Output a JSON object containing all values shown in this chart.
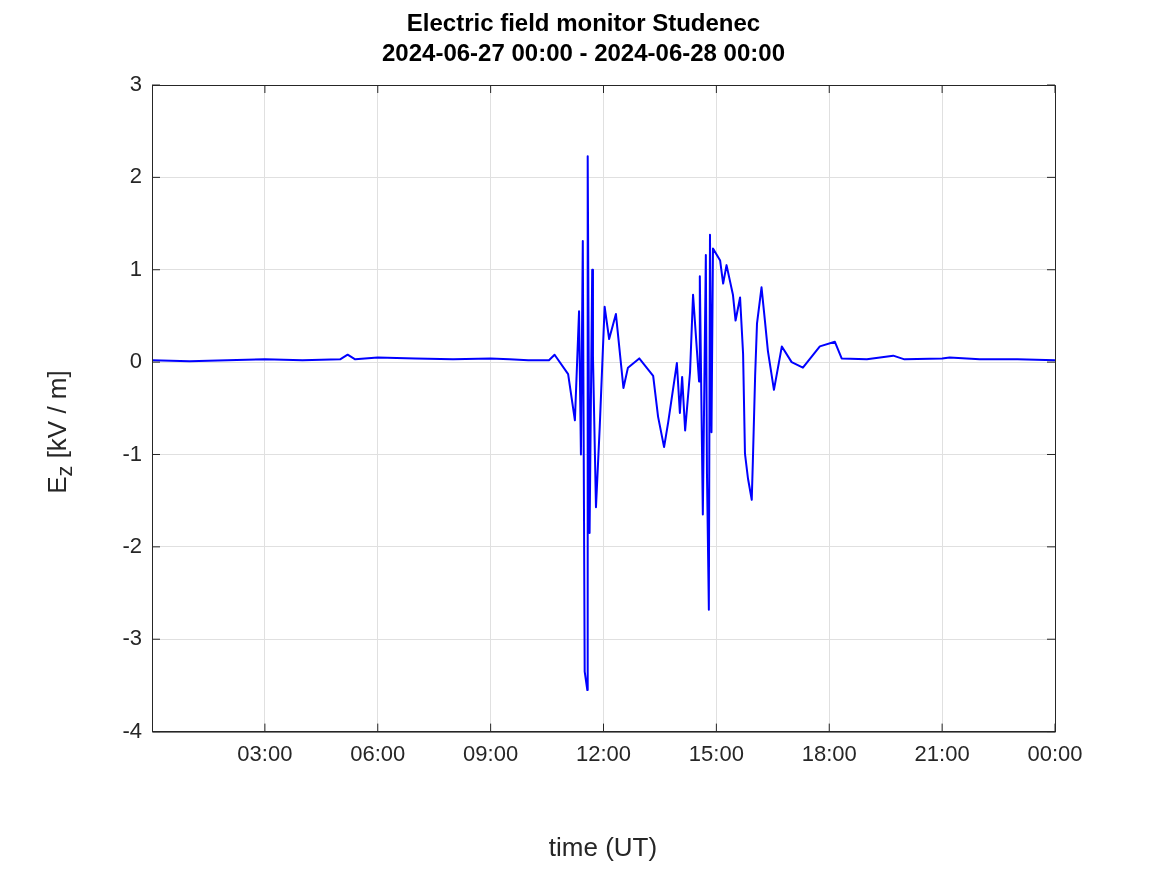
{
  "chart_data": {
    "type": "line",
    "title": "Electric field monitor Studenec",
    "subtitle": "2024-06-27 00:00 - 2024-06-28 00:00",
    "xlabel": "time (UT)",
    "ylabel": "E$_{z}$ [kV / m]",
    "xlim": [
      0,
      24
    ],
    "xticks": [
      {
        "value": 3,
        "label": "03:00"
      },
      {
        "value": 6,
        "label": "06:00"
      },
      {
        "value": 9,
        "label": "09:00"
      },
      {
        "value": 12,
        "label": "12:00"
      },
      {
        "value": 15,
        "label": "15:00"
      },
      {
        "value": 18,
        "label": "18:00"
      },
      {
        "value": 21,
        "label": "21:00"
      },
      {
        "value": 24,
        "label": "00:00"
      }
    ],
    "ylim": [
      -4,
      3
    ],
    "yticks": [
      -4,
      -3,
      -2,
      -1,
      0,
      1,
      2,
      3
    ],
    "grid": true,
    "legend": false,
    "marker": "none",
    "line_style": "solid",
    "series": [
      {
        "color": "#0000ff",
        "x": [
          0,
          1,
          2,
          3,
          4,
          5,
          5.2,
          5.4,
          6,
          7,
          8,
          9,
          9.5,
          10,
          10.55,
          10.7,
          11.06,
          11.24,
          11.35,
          11.4,
          11.45,
          11.5,
          11.57,
          11.58,
          11.63,
          11.7,
          11.72,
          11.8,
          11.9,
          12.03,
          12.15,
          12.33,
          12.53,
          12.65,
          12.95,
          13.32,
          13.45,
          13.61,
          13.72,
          13.95,
          14.03,
          14.09,
          14.17,
          14.3,
          14.38,
          14.54,
          14.56,
          14.64,
          14.72,
          14.75,
          14.8,
          14.83,
          14.87,
          14.91,
          15.1,
          15.18,
          15.27,
          15.44,
          15.51,
          15.63,
          15.71,
          15.76,
          15.84,
          15.94,
          15.97,
          16.03,
          16.08,
          16.2,
          16.29,
          16.37,
          16.53,
          16.74,
          17,
          17.3,
          17.75,
          18.15,
          18.33,
          19,
          19.7,
          20,
          21,
          21.2,
          22,
          23,
          24
        ],
        "values": [
          0.02,
          0.01,
          0.02,
          0.03,
          0.02,
          0.03,
          0.08,
          0.03,
          0.05,
          0.04,
          0.03,
          0.04,
          0.03,
          0.02,
          0.02,
          0.08,
          -0.13,
          -0.63,
          0.55,
          -1.0,
          1.31,
          -3.35,
          -3.55,
          2.23,
          -1.85,
          1.0,
          0.06,
          -1.57,
          -0.7,
          0.6,
          0.25,
          0.52,
          -0.28,
          -0.06,
          0.04,
          -0.15,
          -0.59,
          -0.92,
          -0.65,
          -0.01,
          -0.55,
          -0.16,
          -0.74,
          -0.11,
          0.73,
          -0.21,
          0.93,
          -1.65,
          1.16,
          -1.21,
          -2.68,
          1.38,
          -0.76,
          1.23,
          1.1,
          0.85,
          1.05,
          0.73,
          0.45,
          0.7,
          0.09,
          -0.99,
          -1.26,
          -1.49,
          -1.07,
          -0.15,
          0.42,
          0.81,
          0.45,
          0.12,
          -0.3,
          0.17,
          0,
          -0.06,
          0.17,
          0.22,
          0.04,
          0.03,
          0.07,
          0.03,
          0.04,
          0.05,
          0.03,
          0.03,
          0.02
        ]
      }
    ]
  }
}
